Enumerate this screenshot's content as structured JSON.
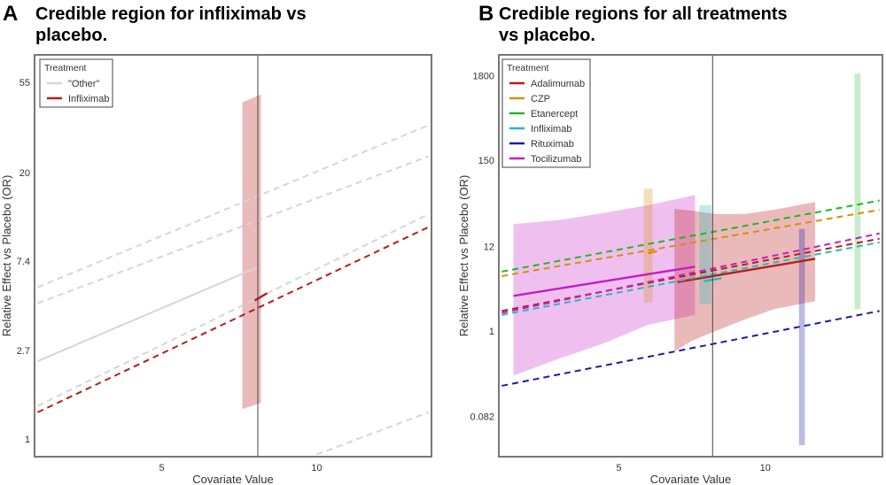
{
  "colors": {
    "adalimumab": "#b81c1c",
    "czp": "#d4900a",
    "etanercept": "#22b522",
    "infliximab": "#2ab8b8",
    "rituximab": "#1c1ca8",
    "tocilizumab": "#c41ec4",
    "other": "#d6d6d6",
    "frame": "#777777"
  },
  "chart_data": [
    {
      "panel_letter": "A",
      "title_lines": [
        "Credible region for infliximab vs",
        "placebo."
      ],
      "type": "line",
      "xlabel": "Covariate Value",
      "ylabel": "Relative Effect vs Placebo (OR)",
      "y_scale": "log",
      "xlim": [
        0.9,
        13.7
      ],
      "ylim": [
        0.82,
        75
      ],
      "x_ticks": [
        {
          "value": 5,
          "label": "5"
        },
        {
          "value": 10,
          "label": "10"
        }
      ],
      "y_ticks": [
        {
          "value": 1,
          "label": "1"
        },
        {
          "value": 2.7,
          "label": "2.7"
        },
        {
          "value": 7.4,
          "label": "7.4"
        },
        {
          "value": 20,
          "label": "20"
        },
        {
          "value": 55,
          "label": "55"
        }
      ],
      "vline_x": 8.1,
      "legend": {
        "title": "Treatment",
        "position": "top-left",
        "entries": [
          {
            "label": "\"Other\"",
            "color_key": "other"
          },
          {
            "label": "Infliximab",
            "color_key": "adalimumab"
          }
        ]
      },
      "series": [
        {
          "name": "\"Other\"",
          "color_key": "other",
          "style": "solid",
          "x": [
            1.0,
            8.1
          ],
          "y": [
            2.4,
            6.9
          ]
        },
        {
          "name": "\"Other\"",
          "color_key": "other",
          "style": "dashed",
          "x": [
            1.0,
            13.6
          ],
          "y": [
            5.5,
            34
          ]
        },
        {
          "name": "\"Other\"",
          "color_key": "other",
          "style": "dashed",
          "x": [
            1.0,
            13.6
          ],
          "y": [
            4.6,
            24
          ]
        },
        {
          "name": "\"Other\"",
          "color_key": "other",
          "style": "dashed",
          "x": [
            1.0,
            13.6
          ],
          "y": [
            1.45,
            12.5
          ]
        },
        {
          "name": "\"Other\"",
          "color_key": "other",
          "style": "dashed",
          "x": [
            10.0,
            13.6
          ],
          "y": [
            0.84,
            1.35
          ]
        },
        {
          "name": "Infliximab",
          "color_key": "adalimumab",
          "style": "dashed",
          "x": [
            1.0,
            13.7
          ],
          "y": [
            1.35,
            11
          ]
        },
        {
          "name": "Infliximab",
          "color_key": "adalimumab",
          "style": "solid",
          "x": [
            8.0,
            8.4
          ],
          "y": [
            4.75,
            5.15
          ]
        }
      ],
      "credible_regions": [
        {
          "name": "Infliximab",
          "color_key": "adalimumab",
          "opacity": 0.3,
          "kind": "bar",
          "x_left": 7.6,
          "x_right": 8.2,
          "y_low_left": 1.4,
          "y_low_right": 1.5,
          "y_high_left": 44,
          "y_high_right": 48
        }
      ]
    },
    {
      "panel_letter": "B",
      "title_lines": [
        "Credible regions for all treatments",
        "vs placebo."
      ],
      "type": "line",
      "xlabel": "Covariate Value",
      "ylabel": "Relative Effect vs Placebo (OR)",
      "y_scale": "log",
      "xlim": [
        0.9,
        14.0
      ],
      "ylim": [
        0.025,
        3300
      ],
      "x_ticks": [
        {
          "value": 5,
          "label": "5"
        },
        {
          "value": 10,
          "label": "10"
        }
      ],
      "y_ticks": [
        {
          "value": 0.082,
          "label": "0.082"
        },
        {
          "value": 1,
          "label": "1"
        },
        {
          "value": 12,
          "label": "12"
        },
        {
          "value": 150,
          "label": "150"
        },
        {
          "value": 1800,
          "label": "1800"
        }
      ],
      "vline_x": 8.2,
      "legend": {
        "title": "Treatment",
        "position": "top-left",
        "entries": [
          {
            "label": "Adalimumab",
            "color_key": "adalimumab"
          },
          {
            "label": "CZP",
            "color_key": "czp"
          },
          {
            "label": "Etanercept",
            "color_key": "etanercept"
          },
          {
            "label": "Infliximab",
            "color_key": "infliximab"
          },
          {
            "label": "Rituximab",
            "color_key": "rituximab"
          },
          {
            "label": "Tocilizumab",
            "color_key": "tocilizumab"
          }
        ]
      },
      "series": [
        {
          "name": "Adalimumab",
          "color_key": "adalimumab",
          "style": "dashed",
          "x": [
            1.0,
            13.9
          ],
          "y": [
            1.8,
            15
          ]
        },
        {
          "name": "Adalimumab",
          "color_key": "adalimumab",
          "style": "solid",
          "x": [
            7.0,
            11.7
          ],
          "y": [
            4.2,
            8.3
          ]
        },
        {
          "name": "CZP",
          "color_key": "czp",
          "style": "dashed",
          "x": [
            1.0,
            13.9
          ],
          "y": [
            5.0,
            35
          ]
        },
        {
          "name": "CZP",
          "color_key": "czp",
          "style": "solid",
          "x": [
            6.0,
            6.3
          ],
          "y": [
            9.8,
            10.4
          ]
        },
        {
          "name": "Etanercept",
          "color_key": "etanercept",
          "style": "dashed",
          "x": [
            1.0,
            13.9
          ],
          "y": [
            5.7,
            46
          ]
        },
        {
          "name": "Infliximab",
          "color_key": "infliximab",
          "style": "dashed",
          "x": [
            1.0,
            13.9
          ],
          "y": [
            1.6,
            13.5
          ]
        },
        {
          "name": "Infliximab",
          "color_key": "infliximab",
          "style": "solid",
          "x": [
            7.9,
            8.5
          ],
          "y": [
            4.3,
            4.7
          ]
        },
        {
          "name": "Rituximab",
          "color_key": "rituximab",
          "style": "dashed",
          "x": [
            1.0,
            13.9
          ],
          "y": [
            0.2,
            1.8
          ]
        },
        {
          "name": "Tocilizumab",
          "color_key": "tocilizumab",
          "style": "dashed",
          "x": [
            1.0,
            13.9
          ],
          "y": [
            1.7,
            17.5
          ]
        },
        {
          "name": "Tocilizumab",
          "color_key": "tocilizumab",
          "style": "solid",
          "x": [
            1.4,
            7.6
          ],
          "y": [
            2.8,
            6.6
          ]
        }
      ],
      "credible_regions": [
        {
          "name": "Tocilizumab",
          "color_key": "tocilizumab",
          "opacity": 0.28,
          "kind": "band",
          "x": [
            1.4,
            3.0,
            4.5,
            6.0,
            7.6
          ],
          "upper": [
            23,
            26,
            32,
            40,
            54
          ],
          "lower": [
            0.27,
            0.45,
            0.7,
            1.2,
            1.6
          ]
        },
        {
          "name": "Adalimumab",
          "color_key": "adalimumab",
          "opacity": 0.3,
          "kind": "band",
          "x": [
            6.9,
            7.5,
            8.3,
            9.3,
            10.3,
            11.7
          ],
          "upper": [
            36,
            34,
            31,
            31,
            35,
            44
          ],
          "lower": [
            0.55,
            0.75,
            1.0,
            1.4,
            1.9,
            2.4
          ]
        },
        {
          "name": "CZP",
          "color_key": "czp",
          "opacity": 0.28,
          "kind": "bar",
          "x_left": 5.85,
          "x_right": 6.15,
          "y_low_left": 2.3,
          "y_low_right": 2.3,
          "y_high_left": 65,
          "y_high_right": 65
        },
        {
          "name": "Infliximab",
          "color_key": "infliximab",
          "opacity": 0.3,
          "kind": "bar",
          "x_left": 7.75,
          "x_right": 8.15,
          "y_low_left": 2.2,
          "y_low_right": 2.2,
          "y_high_left": 40,
          "y_high_right": 40
        },
        {
          "name": "Rituximab",
          "color_key": "rituximab",
          "opacity": 0.3,
          "kind": "bar",
          "x_left": 11.15,
          "x_right": 11.35,
          "y_low_left": 0.035,
          "y_low_right": 0.035,
          "y_high_left": 20,
          "y_high_right": 20
        },
        {
          "name": "Etanercept",
          "color_key": "etanercept",
          "opacity": 0.25,
          "kind": "bar",
          "x_left": 13.05,
          "x_right": 13.25,
          "y_low_left": 1.9,
          "y_low_right": 1.9,
          "y_high_left": 1900,
          "y_high_right": 1900
        }
      ]
    }
  ]
}
